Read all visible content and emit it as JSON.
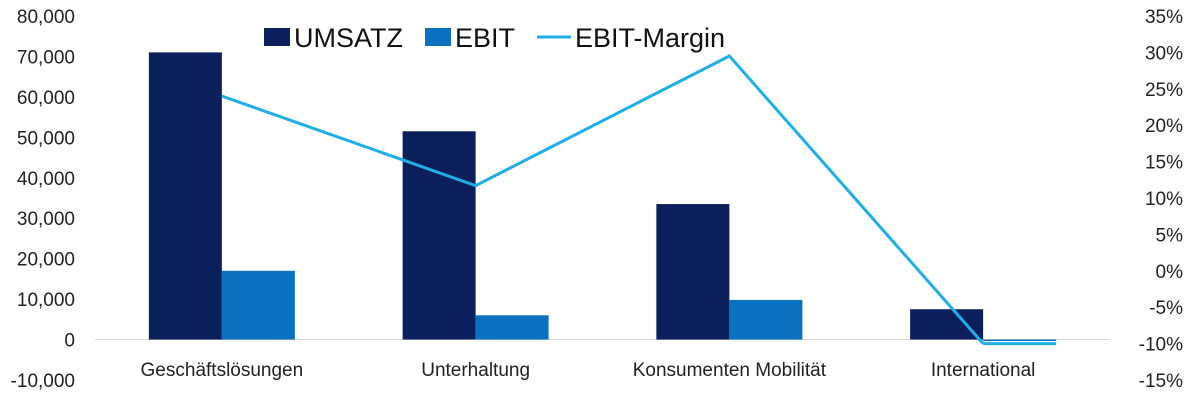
{
  "chart_data": {
    "type": "bar",
    "categories": [
      "Geschäftslösungen",
      "Unterhaltung",
      "Konsumenten Mobilität",
      "International"
    ],
    "series": [
      {
        "name": "UMSATZ",
        "type": "bar",
        "axis": "left",
        "color": "#0b1f5c",
        "values": [
          71000,
          51500,
          33500,
          7500
        ]
      },
      {
        "name": "EBIT",
        "type": "bar",
        "axis": "left",
        "color": "#0a70c2",
        "values": [
          17000,
          6000,
          9800,
          -300
        ]
      },
      {
        "name": "EBIT-Margin",
        "type": "line",
        "axis": "right",
        "color": "#1eaee8",
        "values": [
          24,
          11.7,
          29.5,
          -10
        ]
      }
    ],
    "y_left": {
      "range": [
        -10000,
        80000
      ],
      "ticks": [
        -10000,
        0,
        10000,
        20000,
        30000,
        40000,
        50000,
        60000,
        70000,
        80000
      ],
      "tick_labels": [
        "-10,000",
        "0",
        "10,000",
        "20,000",
        "30,000",
        "40,000",
        "50,000",
        "60,000",
        "70,000",
        "80,000"
      ]
    },
    "y_right": {
      "range": [
        -15,
        35
      ],
      "ticks": [
        -15,
        -10,
        -5,
        0,
        5,
        10,
        15,
        20,
        25,
        30,
        35
      ],
      "tick_labels": [
        "-15%",
        "-10%",
        "-5%",
        "0%",
        "5%",
        "10%",
        "15%",
        "20%",
        "25%",
        "30%",
        "35%"
      ]
    },
    "grid": false,
    "legend": {
      "position": "top-center",
      "entries": [
        "UMSATZ",
        "EBIT",
        "EBIT-Margin"
      ]
    }
  }
}
